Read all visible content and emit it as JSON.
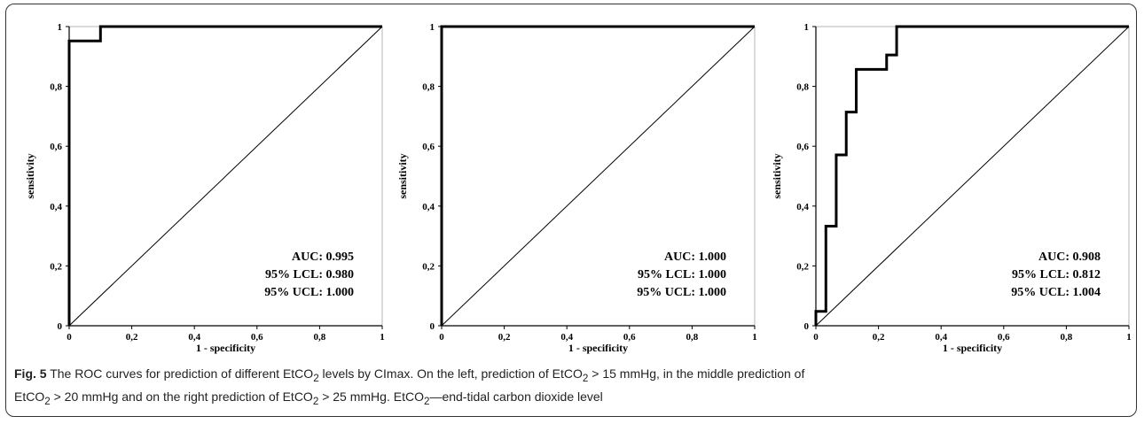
{
  "chart_data": [
    {
      "type": "line",
      "xlabel": "1 - specificity",
      "ylabel": "sensitivity",
      "xlim": [
        0,
        1
      ],
      "ylim": [
        0,
        1
      ],
      "x_ticks": [
        "0",
        "0,2",
        "0,4",
        "0,6",
        "0,8",
        "1"
      ],
      "y_ticks": [
        "0",
        "0,2",
        "0,4",
        "0,6",
        "0,8",
        "1"
      ],
      "series": [
        {
          "x": [
            0,
            0,
            0.1,
            0.1,
            1
          ],
          "y": [
            0,
            0.952,
            0.952,
            1,
            1
          ],
          "role": "roc"
        },
        {
          "x": [
            0,
            1
          ],
          "y": [
            0,
            1
          ],
          "role": "reference"
        }
      ],
      "annotation": [
        "AUC: 0.995",
        "95% LCL: 0.980",
        "95% UCL: 1.000"
      ]
    },
    {
      "type": "line",
      "xlabel": "1 - specificity",
      "ylabel": "sensitivity",
      "xlim": [
        0,
        1
      ],
      "ylim": [
        0,
        1
      ],
      "x_ticks": [
        "0",
        "0,2",
        "0,4",
        "0,6",
        "0,8",
        "1"
      ],
      "y_ticks": [
        "0",
        "0,2",
        "0,4",
        "0,6",
        "0,8",
        "1"
      ],
      "series": [
        {
          "x": [
            0,
            0,
            1
          ],
          "y": [
            0,
            1,
            1
          ],
          "role": "roc"
        },
        {
          "x": [
            0,
            1
          ],
          "y": [
            0,
            1
          ],
          "role": "reference"
        }
      ],
      "annotation": [
        "AUC: 1.000",
        "95% LCL: 1.000",
        "95% UCL: 1.000"
      ]
    },
    {
      "type": "line",
      "xlabel": "1 - specificity",
      "ylabel": "sensitivity",
      "xlim": [
        0,
        1
      ],
      "ylim": [
        0,
        1
      ],
      "x_ticks": [
        "0",
        "0,2",
        "0,4",
        "0,6",
        "0,8",
        "1"
      ],
      "y_ticks": [
        "0",
        "0,2",
        "0,4",
        "0,6",
        "0,8",
        "1"
      ],
      "series": [
        {
          "x": [
            0,
            0,
            0.032,
            0.032,
            0.065,
            0.065,
            0.097,
            0.097,
            0.129,
            0.129,
            0.226,
            0.226,
            0.258,
            0.258,
            1
          ],
          "y": [
            0,
            0.048,
            0.048,
            0.333,
            0.333,
            0.571,
            0.571,
            0.714,
            0.714,
            0.857,
            0.857,
            0.905,
            0.905,
            1,
            1
          ],
          "role": "roc"
        },
        {
          "x": [
            0,
            1
          ],
          "y": [
            0,
            1
          ],
          "role": "reference"
        }
      ],
      "annotation": [
        "AUC: 0.908",
        "95% LCL: 0.812",
        "95% UCL: 1.004"
      ]
    }
  ],
  "caption": {
    "fig_label": "Fig. 5",
    "line1_parts": [
      "The ROC curves for prediction of different EtCO",
      "2",
      " levels by CImax. On the left, prediction of EtCO",
      "2",
      " > 15 mmHg, in the middle prediction of"
    ],
    "line2_parts": [
      "EtCO",
      "2",
      " > 20 mmHg and on the right prediction of EtCO",
      "2",
      " > 25 mmHg. EtCO",
      "2",
      "—end-tidal carbon dioxide level"
    ]
  }
}
